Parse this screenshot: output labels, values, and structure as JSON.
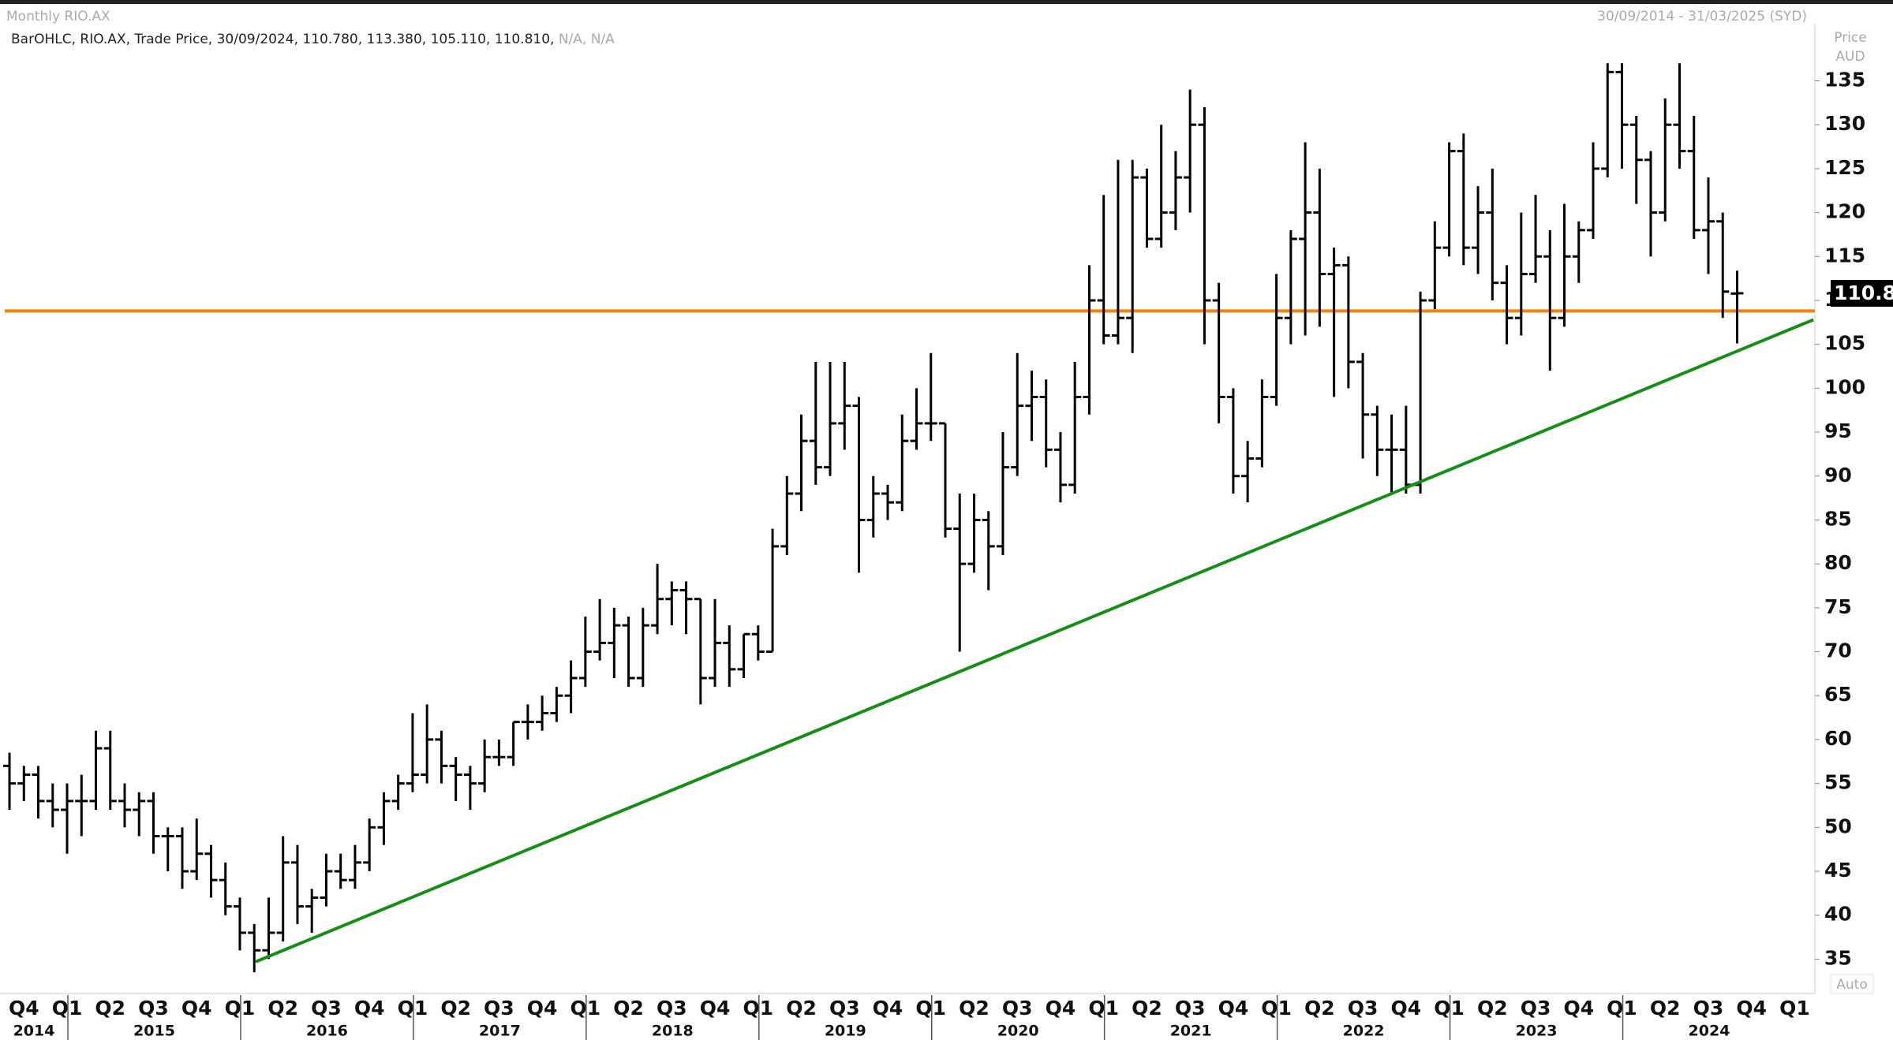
{
  "chart_data": {
    "type": "ohlc",
    "title": "Monthly RIO.AX",
    "date_range": "30/09/2014 - 31/03/2025 (SYD)",
    "legend_text": "BarOHLC, RIO.AX, Trade Price, 30/09/2024, 110.780, 113.380, 105.110, 110.810,",
    "legend_na": "N/A, N/A",
    "y_label": "Price",
    "y_unit": "AUD",
    "auto_label": "Auto",
    "last_label": "110.8",
    "color": "#000000",
    "ylim": [
      35,
      135
    ],
    "yticks": [
      35,
      40,
      45,
      50,
      55,
      60,
      65,
      70,
      75,
      80,
      85,
      90,
      95,
      100,
      105,
      110,
      115,
      120,
      125,
      130,
      135
    ],
    "xlim": [
      -0.66,
      125.4
    ],
    "xticks": [
      "Q4",
      "Q1",
      "Q2",
      "Q3",
      "Q4",
      "Q1",
      "Q2",
      "Q3",
      "Q4",
      "Q1",
      "Q2",
      "Q3",
      "Q4",
      "Q1",
      "Q2",
      "Q3",
      "Q4",
      "Q1",
      "Q2",
      "Q3",
      "Q4",
      "Q1",
      "Q2",
      "Q3",
      "Q4",
      "Q1",
      "Q2",
      "Q3",
      "Q4",
      "Q1",
      "Q2",
      "Q3",
      "Q4",
      "Q1",
      "Q2",
      "Q3",
      "Q4",
      "Q1",
      "Q2",
      "Q3",
      "Q4",
      "Q1"
    ],
    "years": [
      "2014",
      "2015",
      "2016",
      "2017",
      "2018",
      "2019",
      "2020",
      "2021",
      "2022",
      "2023",
      "2024"
    ],
    "open": [
      57,
      55,
      56,
      53,
      52,
      53,
      53,
      59,
      53,
      52,
      53,
      49,
      49,
      45,
      47,
      44,
      41,
      38,
      36,
      38,
      46,
      41,
      42,
      45,
      44,
      46,
      50,
      53,
      55,
      56,
      60,
      57,
      56,
      55,
      58,
      58,
      62,
      62,
      63,
      65,
      67,
      70,
      71,
      73,
      67,
      73,
      76,
      77,
      76,
      67,
      71,
      68,
      72,
      70,
      82,
      88,
      94,
      91,
      96,
      98,
      85,
      88,
      87,
      94,
      96,
      96,
      84,
      80,
      85,
      82,
      91,
      98,
      99,
      93,
      89,
      99,
      110,
      106,
      108,
      124,
      117,
      120,
      124,
      130,
      110,
      99,
      90,
      92,
      99,
      108,
      117,
      120,
      113,
      114,
      103,
      97,
      93,
      93,
      89,
      110,
      116,
      127,
      116,
      120,
      112,
      108,
      113,
      115,
      108,
      115,
      118,
      125,
      136,
      130,
      126,
      120,
      130,
      127,
      118,
      119,
      110.78
    ],
    "high": [
      58.5,
      57,
      57,
      55,
      55,
      56,
      61,
      61,
      55,
      54,
      54,
      50,
      50,
      51,
      48,
      46,
      42,
      39,
      42,
      49,
      48,
      43,
      47,
      47,
      48,
      51,
      54,
      56,
      63,
      64,
      61,
      58,
      57,
      60,
      60,
      62,
      64,
      65,
      66,
      69,
      74,
      76,
      75,
      74,
      75,
      80,
      78,
      78,
      76,
      76,
      73,
      72,
      73,
      84,
      90,
      97,
      103,
      103,
      103,
      99,
      90,
      89,
      97,
      100,
      104,
      96,
      88,
      88,
      86,
      95,
      104,
      102,
      101,
      95,
      103,
      114,
      122,
      126,
      126,
      125,
      130,
      127,
      134,
      132,
      112,
      100,
      94,
      101,
      113,
      118,
      128,
      125,
      116,
      115,
      104,
      98,
      97,
      98,
      111,
      119,
      128,
      129,
      123,
      125,
      114,
      120,
      122,
      118,
      121,
      119,
      128,
      137,
      137,
      131,
      127,
      133,
      137,
      131,
      124,
      120,
      113.38
    ],
    "low": [
      52,
      53,
      51,
      50,
      47,
      49,
      52,
      52,
      50,
      49,
      47,
      45,
      43,
      44,
      42,
      40,
      36,
      33.5,
      35,
      37,
      39,
      38,
      41,
      43,
      43,
      45,
      48,
      52,
      54,
      55,
      55,
      53,
      52,
      54,
      57,
      57,
      60,
      61,
      62,
      63,
      66,
      69,
      67,
      66,
      66,
      72,
      73,
      72,
      64,
      66,
      66,
      67,
      69,
      70,
      81,
      86,
      89,
      90,
      93,
      79,
      83,
      85,
      86,
      93,
      94,
      83,
      70,
      79,
      77,
      81,
      90,
      94,
      91,
      87,
      88,
      97,
      105,
      105,
      104,
      116,
      116,
      118,
      120,
      105,
      96,
      88,
      87,
      91,
      98,
      105,
      106,
      107,
      99,
      100,
      92,
      90,
      88,
      88,
      88,
      109,
      115,
      114,
      113,
      110,
      105,
      106,
      112,
      102,
      107,
      112,
      117,
      124,
      125,
      121,
      115,
      119,
      125,
      117,
      113,
      108,
      105.11
    ],
    "close": [
      55,
      56,
      53,
      52,
      53,
      53,
      59,
      53,
      52,
      53,
      49,
      49,
      45,
      47,
      44,
      41,
      38,
      36,
      38,
      46,
      41,
      42,
      45,
      44,
      46,
      50,
      53,
      55,
      56,
      60,
      57,
      56,
      55,
      58,
      58,
      62,
      62,
      63,
      65,
      67,
      70,
      71,
      73,
      67,
      73,
      76,
      77,
      76,
      67,
      71,
      68,
      72,
      70,
      82,
      88,
      94,
      91,
      96,
      98,
      85,
      88,
      87,
      94,
      96,
      96,
      84,
      80,
      85,
      82,
      91,
      98,
      99,
      93,
      89,
      99,
      110,
      106,
      108,
      124,
      117,
      120,
      124,
      130,
      110,
      99,
      90,
      92,
      99,
      108,
      117,
      120,
      113,
      114,
      103,
      97,
      93,
      93,
      89,
      110,
      116,
      127,
      116,
      120,
      112,
      108,
      113,
      115,
      108,
      115,
      118,
      125,
      136,
      130,
      126,
      120,
      130,
      127,
      118,
      119,
      111,
      110.81
    ],
    "hline": {
      "value": 108.8,
      "color": "#f7800a"
    },
    "trendline": {
      "x": [
        17.1,
        125.3
      ],
      "y": [
        34.7,
        107.8
      ],
      "color": "#1a8c1a"
    }
  }
}
